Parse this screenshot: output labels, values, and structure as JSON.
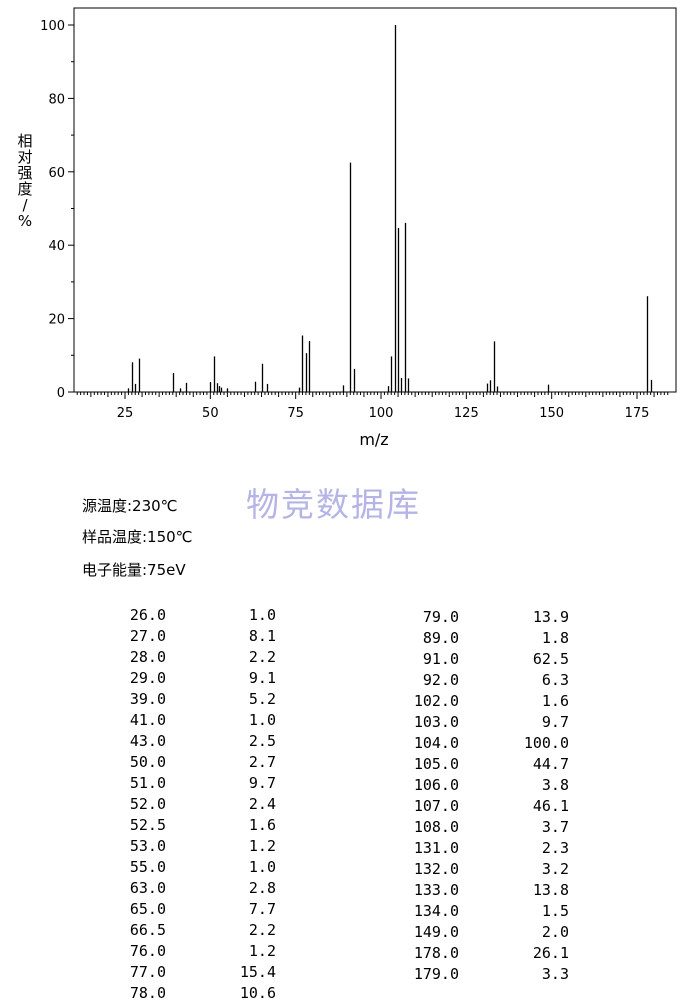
{
  "chart_data": {
    "type": "bar",
    "xlabel": "m/z",
    "ylabel": "相对强度/%",
    "xlim": [
      10,
      185
    ],
    "ylim": [
      0,
      100
    ],
    "x_ticks": [
      "25",
      "50",
      "75",
      "100",
      "125",
      "150",
      "175"
    ],
    "y_ticks": [
      "0",
      "20",
      "40",
      "60",
      "80",
      "100"
    ],
    "peaks": [
      {
        "mz": 26.0,
        "intensity": 1.0
      },
      {
        "mz": 27.0,
        "intensity": 8.1
      },
      {
        "mz": 28.0,
        "intensity": 2.2
      },
      {
        "mz": 29.0,
        "intensity": 9.1
      },
      {
        "mz": 39.0,
        "intensity": 5.2
      },
      {
        "mz": 41.0,
        "intensity": 1.0
      },
      {
        "mz": 43.0,
        "intensity": 2.5
      },
      {
        "mz": 50.0,
        "intensity": 2.7
      },
      {
        "mz": 51.0,
        "intensity": 9.7
      },
      {
        "mz": 52.0,
        "intensity": 2.4
      },
      {
        "mz": 52.5,
        "intensity": 1.6
      },
      {
        "mz": 53.0,
        "intensity": 1.2
      },
      {
        "mz": 55.0,
        "intensity": 1.0
      },
      {
        "mz": 63.0,
        "intensity": 2.8
      },
      {
        "mz": 65.0,
        "intensity": 7.7
      },
      {
        "mz": 66.5,
        "intensity": 2.2
      },
      {
        "mz": 76.0,
        "intensity": 1.2
      },
      {
        "mz": 77.0,
        "intensity": 15.4
      },
      {
        "mz": 78.0,
        "intensity": 10.6
      },
      {
        "mz": 79.0,
        "intensity": 13.9
      },
      {
        "mz": 89.0,
        "intensity": 1.8
      },
      {
        "mz": 91.0,
        "intensity": 62.5
      },
      {
        "mz": 92.0,
        "intensity": 6.3
      },
      {
        "mz": 102.0,
        "intensity": 1.6
      },
      {
        "mz": 103.0,
        "intensity": 9.7
      },
      {
        "mz": 104.0,
        "intensity": 100.0
      },
      {
        "mz": 105.0,
        "intensity": 44.7
      },
      {
        "mz": 106.0,
        "intensity": 3.8
      },
      {
        "mz": 107.0,
        "intensity": 46.1
      },
      {
        "mz": 108.0,
        "intensity": 3.7
      },
      {
        "mz": 131.0,
        "intensity": 2.3
      },
      {
        "mz": 132.0,
        "intensity": 3.2
      },
      {
        "mz": 133.0,
        "intensity": 13.8
      },
      {
        "mz": 134.0,
        "intensity": 1.5
      },
      {
        "mz": 149.0,
        "intensity": 2.0
      },
      {
        "mz": 178.0,
        "intensity": 26.1
      },
      {
        "mz": 179.0,
        "intensity": 3.3
      }
    ],
    "grid": false,
    "bar_color": "#000000"
  },
  "conditions": {
    "source_temp": "源温度:230℃",
    "sample_temp": "样品温度:150℃",
    "electron_energy": "电子能量:75eV"
  },
  "watermark": "物竞数据库",
  "table_left": [
    {
      "mz": "26.0",
      "ab": "1.0"
    },
    {
      "mz": "27.0",
      "ab": "8.1"
    },
    {
      "mz": "28.0",
      "ab": "2.2"
    },
    {
      "mz": "29.0",
      "ab": "9.1"
    },
    {
      "mz": "39.0",
      "ab": "5.2"
    },
    {
      "mz": "41.0",
      "ab": "1.0"
    },
    {
      "mz": "43.0",
      "ab": "2.5"
    },
    {
      "mz": "50.0",
      "ab": "2.7"
    },
    {
      "mz": "51.0",
      "ab": "9.7"
    },
    {
      "mz": "52.0",
      "ab": "2.4"
    },
    {
      "mz": "52.5",
      "ab": "1.6"
    },
    {
      "mz": "53.0",
      "ab": "1.2"
    },
    {
      "mz": "55.0",
      "ab": "1.0"
    },
    {
      "mz": "63.0",
      "ab": "2.8"
    },
    {
      "mz": "65.0",
      "ab": "7.7"
    },
    {
      "mz": "66.5",
      "ab": "2.2"
    },
    {
      "mz": "76.0",
      "ab": "1.2"
    },
    {
      "mz": "77.0",
      "ab": "15.4"
    },
    {
      "mz": "78.0",
      "ab": "10.6"
    }
  ],
  "table_right": [
    {
      "mz": "79.0",
      "ab": "13.9"
    },
    {
      "mz": "89.0",
      "ab": "1.8"
    },
    {
      "mz": "91.0",
      "ab": "62.5"
    },
    {
      "mz": "92.0",
      "ab": "6.3"
    },
    {
      "mz": "102.0",
      "ab": "1.6"
    },
    {
      "mz": "103.0",
      "ab": "9.7"
    },
    {
      "mz": "104.0",
      "ab": "100.0"
    },
    {
      "mz": "105.0",
      "ab": "44.7"
    },
    {
      "mz": "106.0",
      "ab": "3.8"
    },
    {
      "mz": "107.0",
      "ab": "46.1"
    },
    {
      "mz": "108.0",
      "ab": "3.7"
    },
    {
      "mz": "131.0",
      "ab": "2.3"
    },
    {
      "mz": "132.0",
      "ab": "3.2"
    },
    {
      "mz": "133.0",
      "ab": "13.8"
    },
    {
      "mz": "134.0",
      "ab": "1.5"
    },
    {
      "mz": "149.0",
      "ab": "2.0"
    },
    {
      "mz": "178.0",
      "ab": "26.1"
    },
    {
      "mz": "179.0",
      "ab": "3.3"
    }
  ]
}
